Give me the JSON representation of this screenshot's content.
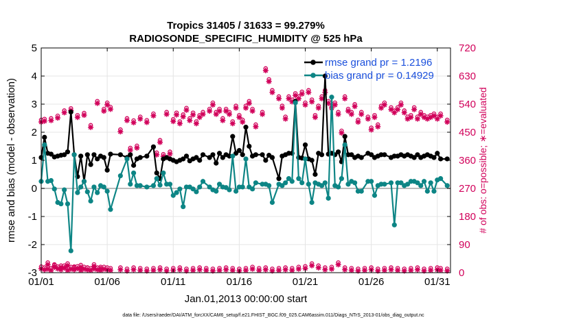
{
  "chart_data": {
    "type": "line",
    "title_line1": "Tropics 31405 / 31633 = 99.279%",
    "title_line2": "RADIOSONDE_SPECIFIC_HUMIDITY @ 525 hPa",
    "xlabel": "Jan.01,2013 00:00:00 start",
    "ylabel": "rmse and bias (model - observation)",
    "ylabel_right": "# of obs: o=possible; ∗=evaluated",
    "footnote": "data file: /Users/raeder/DAI/ATM_forcXX/CAM6_setup/f.e21.FHIST_BGC.f09_025.CAM6assim.011/Diags_NTrS_2013-01/obs_diag_output.nc",
    "xlim": [
      1,
      32
    ],
    "ylim": [
      -3,
      5
    ],
    "ylim_right": [
      0,
      720
    ],
    "xticks": [
      1,
      6,
      11,
      16,
      21,
      26,
      31
    ],
    "xtick_labels": [
      "01/01",
      "01/06",
      "01/11",
      "01/16",
      "01/21",
      "01/26",
      "01/31"
    ],
    "yticks": [
      -3,
      -2,
      -1,
      0,
      1,
      2,
      3,
      4,
      5
    ],
    "ytick_labels": [
      "-3",
      "-2",
      "-1",
      "0",
      "1",
      "2",
      "3",
      "4",
      "5"
    ],
    "yticks_right": [
      0,
      90,
      180,
      270,
      360,
      450,
      540,
      630,
      720
    ],
    "ytick_labels_right": [
      "0",
      "90",
      "180",
      "270",
      "360",
      "450",
      "540",
      "630",
      "720"
    ],
    "grid": true,
    "legend_position": "top-right",
    "colors": {
      "rmse": "#000000",
      "bias": "#0d8585",
      "obs": "#d1005a",
      "legend_text": "#1a4fdc",
      "zero_line": "#a6a6a6"
    },
    "series": [
      {
        "name": "rmse grand pr = 1.2196",
        "x": [
          1.0,
          1.25,
          1.5,
          1.75,
          2.0,
          2.25,
          2.5,
          2.75,
          3.0,
          3.25,
          3.5,
          3.75,
          4.0,
          4.25,
          4.5,
          4.75,
          5.0,
          5.25,
          5.5,
          5.75,
          6.0,
          6.25,
          7.0,
          7.5,
          7.75,
          8.0,
          8.25,
          8.5,
          9.0,
          9.5,
          9.75,
          10.0,
          10.25,
          10.5,
          10.75,
          11.0,
          11.25,
          11.5,
          11.75,
          12.0,
          12.25,
          12.5,
          12.75,
          13.0,
          13.25,
          13.75,
          14.0,
          14.25,
          14.5,
          14.75,
          15.0,
          15.25,
          15.5,
          15.75,
          16.0,
          16.25,
          16.5,
          16.75,
          17.0,
          17.25,
          17.75,
          18.0,
          18.25,
          18.5,
          19.0,
          19.25,
          19.5,
          19.75,
          20.0,
          20.25,
          20.5,
          20.75,
          21.0,
          21.25,
          21.5,
          21.75,
          22.0,
          22.25,
          22.5,
          22.75,
          23.0,
          23.25,
          23.5,
          23.75,
          24.0,
          24.25,
          24.5,
          24.75,
          25.0,
          25.25,
          25.75,
          26.0,
          26.25,
          26.5,
          26.75,
          27.0,
          27.5,
          27.75,
          28.0,
          28.25,
          28.5,
          28.75,
          29.0,
          29.25,
          29.5,
          29.75,
          30.0,
          30.25,
          30.5,
          30.75,
          31.0,
          31.25,
          31.75
        ],
        "y": [
          1.1,
          1.82,
          1.25,
          1.22,
          1.12,
          1.15,
          1.18,
          1.2,
          1.3,
          2.72,
          1.2,
          0.42,
          1.15,
          0.25,
          1.2,
          0.85,
          1.2,
          1.05,
          1.15,
          1.1,
          0.65,
          1.22,
          1.2,
          1.1,
          1.2,
          0.82,
          1.05,
          1.1,
          1.15,
          1.48,
          0.55,
          0.35,
          1.05,
          1.1,
          1.05,
          1.0,
          0.95,
          1.0,
          1.05,
          1.15,
          0.98,
          1.05,
          1.1,
          1.0,
          1.2,
          1.1,
          1.2,
          0.9,
          1.25,
          1.1,
          1.2,
          1.15,
          1.85,
          1.25,
          1.35,
          1.2,
          2.18,
          1.5,
          1.15,
          1.2,
          1.2,
          1.0,
          1.18,
          1.1,
          0.35,
          1.15,
          1.2,
          1.25,
          1.25,
          3.1,
          1.1,
          1.08,
          1.55,
          1.05,
          1.0,
          0.5,
          1.25,
          1.2,
          4.0,
          1.22,
          1.25,
          1.2,
          1.3,
          0.95,
          1.85,
          1.2,
          1.2,
          1.1,
          1.15,
          1.1,
          1.25,
          1.2,
          1.1,
          1.15,
          1.2,
          1.2,
          1.1,
          1.15,
          1.15,
          1.2,
          1.15,
          1.2,
          1.15,
          1.1,
          1.2,
          1.1,
          1.15,
          1.2,
          1.15,
          1.1,
          1.25,
          1.05,
          1.05
        ]
      },
      {
        "name": "bias grand pr = 0.14929",
        "x": [
          1.0,
          1.25,
          1.5,
          1.75,
          2.0,
          2.25,
          2.5,
          2.75,
          3.0,
          3.25,
          3.5,
          3.75,
          4.0,
          4.25,
          4.5,
          4.75,
          5.0,
          5.25,
          5.5,
          5.75,
          6.0,
          6.25,
          7.0,
          7.5,
          7.75,
          8.0,
          8.25,
          8.5,
          9.0,
          9.5,
          9.75,
          10.0,
          10.25,
          10.5,
          10.75,
          11.0,
          11.25,
          11.5,
          11.75,
          12.0,
          12.25,
          12.5,
          12.75,
          13.0,
          13.25,
          13.75,
          14.0,
          14.25,
          14.5,
          14.75,
          15.0,
          15.25,
          15.5,
          15.75,
          16.0,
          16.25,
          16.5,
          16.75,
          17.0,
          17.25,
          17.75,
          18.0,
          18.25,
          18.5,
          19.0,
          19.25,
          19.5,
          19.75,
          20.0,
          20.25,
          20.5,
          20.75,
          21.0,
          21.25,
          21.5,
          21.75,
          22.0,
          22.25,
          22.5,
          22.75,
          23.0,
          23.25,
          23.5,
          23.75,
          24.0,
          24.25,
          24.5,
          24.75,
          25.0,
          25.25,
          25.75,
          26.0,
          26.25,
          26.5,
          26.75,
          27.0,
          27.5,
          27.75,
          28.0,
          28.25,
          28.5,
          28.75,
          29.0,
          29.25,
          29.5,
          29.75,
          30.0,
          30.25,
          30.5,
          30.75,
          31.0,
          31.25,
          31.75
        ],
        "y": [
          0.25,
          1.55,
          0.25,
          0.28,
          -0.02,
          -0.5,
          -0.55,
          -0.05,
          -0.55,
          -2.22,
          1.2,
          -0.15,
          0.05,
          0.25,
          -0.12,
          -0.45,
          0.05,
          -0.15,
          0.1,
          0.05,
          -0.1,
          -0.75,
          0.45,
          1.05,
          0.15,
          0.55,
          0.1,
          0.1,
          0.05,
          0.1,
          0.35,
          0.12,
          0.55,
          0.15,
          0.15,
          -0.25,
          -0.15,
          -0.02,
          -0.65,
          0.05,
          0.05,
          -0.02,
          -0.12,
          0.05,
          0.25,
          0.05,
          -0.05,
          -0.1,
          0.15,
          0.05,
          0.03,
          -0.05,
          1.15,
          -0.1,
          0.05,
          0.05,
          1.05,
          0.05,
          -0.02,
          0.2,
          0.15,
          0.15,
          0.1,
          -0.5,
          0.15,
          0.1,
          0.2,
          0.35,
          0.25,
          3.05,
          0.35,
          0.2,
          1.05,
          0.15,
          -0.5,
          0.2,
          0.15,
          0.1,
          0.2,
          -0.35,
          3.25,
          0.1,
          0.05,
          0.35,
          1.55,
          0.15,
          0.25,
          0.2,
          -0.1,
          -0.1,
          0.25,
          0.25,
          -0.25,
          0.1,
          0.15,
          0.15,
          0.2,
          -1.3,
          0.2,
          0.2,
          0.1,
          0.15,
          0.25,
          0.25,
          0.2,
          0.1,
          0.25,
          -0.1,
          0.2,
          -0.1,
          0.3,
          0.35,
          0.1
        ]
      }
    ],
    "counts_x": [
      1.0,
      1.25,
      1.5,
      1.75,
      2.0,
      2.25,
      2.5,
      2.75,
      3.0,
      3.25,
      3.5,
      3.75,
      4.0,
      4.25,
      4.5,
      4.75,
      5.0,
      5.25,
      5.5,
      5.75,
      6.0,
      6.25,
      7.0,
      7.5,
      7.75,
      8.0,
      8.25,
      8.5,
      9.0,
      9.5,
      9.75,
      10.0,
      10.25,
      10.5,
      10.75,
      11.0,
      11.25,
      11.5,
      11.75,
      12.0,
      12.25,
      12.5,
      12.75,
      13.0,
      13.25,
      13.75,
      14.0,
      14.25,
      14.5,
      14.75,
      15.0,
      15.25,
      15.5,
      15.75,
      16.0,
      16.25,
      16.5,
      16.75,
      17.0,
      17.25,
      17.75,
      18.0,
      18.25,
      18.5,
      19.0,
      19.25,
      19.5,
      19.75,
      20.0,
      20.25,
      20.5,
      20.75,
      21.0,
      21.25,
      21.5,
      21.75,
      22.0,
      22.25,
      22.5,
      22.75,
      23.0,
      23.25,
      23.5,
      23.75,
      24.0,
      24.25,
      24.5,
      24.75,
      25.0,
      25.25,
      25.75,
      26.0,
      26.25,
      26.5,
      26.75,
      27.0,
      27.5,
      27.75,
      28.0,
      28.25,
      28.5,
      28.75,
      29.0,
      29.25,
      29.5,
      29.75,
      30.0,
      30.25,
      30.5,
      30.75,
      31.0,
      31.25,
      31.75
    ],
    "count_possible": [
      485,
      488,
      28,
      490,
      20,
      498,
      18,
      515,
      25,
      522,
      15,
      500,
      20,
      507,
      12,
      468,
      22,
      545,
      14,
      520,
      540,
      526,
      454,
      490,
      395,
      483,
      402,
      495,
      484,
      505,
      380,
      420,
      375,
      510,
      383,
      487,
      508,
      480,
      502,
      523,
      490,
      508,
      480,
      500,
      510,
      520,
      540,
      510,
      520,
      490,
      520,
      510,
      480,
      530,
      500,
      485,
      530,
      545,
      520,
      470,
      510,
      650,
      615,
      580,
      560,
      530,
      495,
      560,
      550,
      570,
      560,
      575,
      540,
      580,
      550,
      500,
      530,
      560,
      580,
      545,
      530,
      540,
      510,
      450,
      560,
      520,
      510,
      535,
      485,
      510,
      495,
      460,
      500,
      470,
      530,
      540,
      525,
      515,
      525,
      540,
      515,
      495,
      500,
      525,
      495,
      510,
      500,
      495,
      500,
      505,
      495,
      505,
      485
    ],
    "count_evaluated": [
      485,
      488,
      28,
      490,
      20,
      498,
      18,
      515,
      25,
      522,
      15,
      500,
      20,
      507,
      12,
      468,
      22,
      545,
      14,
      520,
      540,
      526,
      454,
      490,
      395,
      483,
      402,
      495,
      484,
      505,
      380,
      420,
      375,
      510,
      383,
      487,
      508,
      480,
      502,
      523,
      490,
      508,
      480,
      500,
      510,
      520,
      540,
      510,
      520,
      490,
      520,
      510,
      480,
      530,
      500,
      485,
      530,
      545,
      520,
      470,
      510,
      650,
      615,
      580,
      560,
      530,
      495,
      560,
      550,
      570,
      560,
      575,
      540,
      580,
      550,
      500,
      530,
      560,
      580,
      545,
      530,
      540,
      510,
      450,
      560,
      520,
      510,
      535,
      485,
      510,
      495,
      460,
      500,
      470,
      530,
      540,
      525,
      515,
      525,
      540,
      515,
      495,
      500,
      525,
      495,
      510,
      500,
      495,
      500,
      505,
      495,
      505,
      485
    ],
    "bottom_counts_x": [
      1.0,
      1.25,
      1.5,
      1.75,
      2.0,
      2.25,
      2.5,
      2.75,
      3.0,
      3.25,
      3.5,
      3.75,
      4.0,
      4.25,
      4.5,
      4.75,
      5.0,
      5.25,
      5.5,
      5.75,
      6.0,
      6.25,
      7.0,
      7.5,
      8.0,
      8.5,
      9.0,
      9.5,
      10.0,
      10.5,
      11.0,
      11.5,
      12.0,
      12.5,
      13.0,
      13.5,
      14.0,
      14.5,
      15.0,
      15.5,
      16.0,
      16.5,
      17.0,
      17.5,
      18.0,
      18.5,
      19.0,
      19.5,
      20.0,
      20.5,
      21.0,
      21.5,
      22.0,
      22.5,
      23.0,
      23.5,
      24.0,
      24.5,
      25.0,
      25.5,
      26.0,
      26.5,
      27.0,
      27.5,
      28.0,
      28.5,
      29.0,
      29.5,
      30.0,
      30.5,
      31.0,
      31.25,
      31.75
    ],
    "bottom_counts_y": [
      15,
      12,
      14,
      10,
      22,
      15,
      12,
      18,
      10,
      14,
      12,
      16,
      10,
      14,
      12,
      10,
      15,
      12,
      10,
      14,
      12,
      10,
      12,
      8,
      12,
      10,
      8,
      10,
      12,
      8,
      10,
      12,
      8,
      10,
      12,
      10,
      8,
      10,
      12,
      10,
      8,
      10,
      14,
      10,
      12,
      8,
      10,
      12,
      10,
      14,
      16,
      25,
      18,
      12,
      14,
      28,
      12,
      10,
      8,
      10,
      12,
      8,
      10,
      12,
      10,
      8,
      10,
      12,
      8,
      10,
      12,
      10,
      8
    ]
  }
}
